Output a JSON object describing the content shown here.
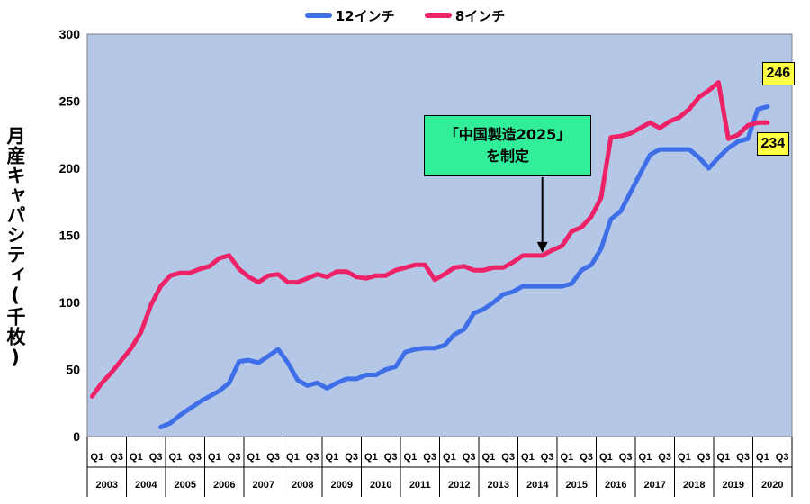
{
  "chart_data": {
    "type": "line",
    "ylabel": "月産キャパシティ(千枚)",
    "ylim": [
      0,
      300
    ],
    "yticks": [
      0,
      50,
      100,
      150,
      200,
      250,
      300
    ],
    "years": [
      "2003",
      "2004",
      "2005",
      "2006",
      "2007",
      "2008",
      "2009",
      "2010",
      "2011",
      "2012",
      "2013",
      "2014",
      "2015",
      "2016",
      "2017",
      "2018",
      "2019",
      "2020"
    ],
    "quarter_ticks": [
      "Q1",
      "Q3"
    ],
    "legend_position": "top-center",
    "grid": false,
    "series": [
      {
        "name": "12インチ",
        "color": "#3f6fe8",
        "start_index": 7,
        "values": [
          7,
          10,
          16,
          21,
          26,
          30,
          34,
          40,
          56,
          57,
          55,
          60,
          65,
          55,
          42,
          38,
          40,
          36,
          40,
          43,
          43,
          46,
          46,
          50,
          52,
          63,
          65,
          66,
          66,
          68,
          76,
          80,
          92,
          95,
          100,
          106,
          108,
          112,
          112,
          112,
          112,
          112,
          114,
          124,
          128,
          140,
          162,
          168,
          182,
          196,
          210,
          214,
          214,
          214,
          214,
          208,
          200,
          208,
          215,
          220,
          222,
          244,
          246
        ]
      },
      {
        "name": "8インチ",
        "color": "#ee2266",
        "start_index": 0,
        "values": [
          30,
          40,
          48,
          57,
          66,
          78,
          98,
          112,
          120,
          122,
          122,
          125,
          127,
          133,
          135,
          125,
          119,
          115,
          120,
          121,
          115,
          115,
          118,
          121,
          119,
          123,
          123,
          119,
          118,
          120,
          120,
          124,
          126,
          128,
          128,
          117,
          121,
          126,
          127,
          124,
          124,
          126,
          126,
          130,
          135,
          135,
          135,
          139,
          142,
          153,
          156,
          164,
          178,
          223,
          224,
          226,
          230,
          234,
          230,
          235,
          238,
          244,
          253,
          258,
          264,
          222,
          225,
          232,
          234,
          234
        ]
      }
    ],
    "annotation": {
      "line1": "「中国製造2025」",
      "line2": "を制定",
      "points_to_index": 46
    },
    "end_labels": {
      "12inch": "246",
      "8inch": "234"
    }
  }
}
